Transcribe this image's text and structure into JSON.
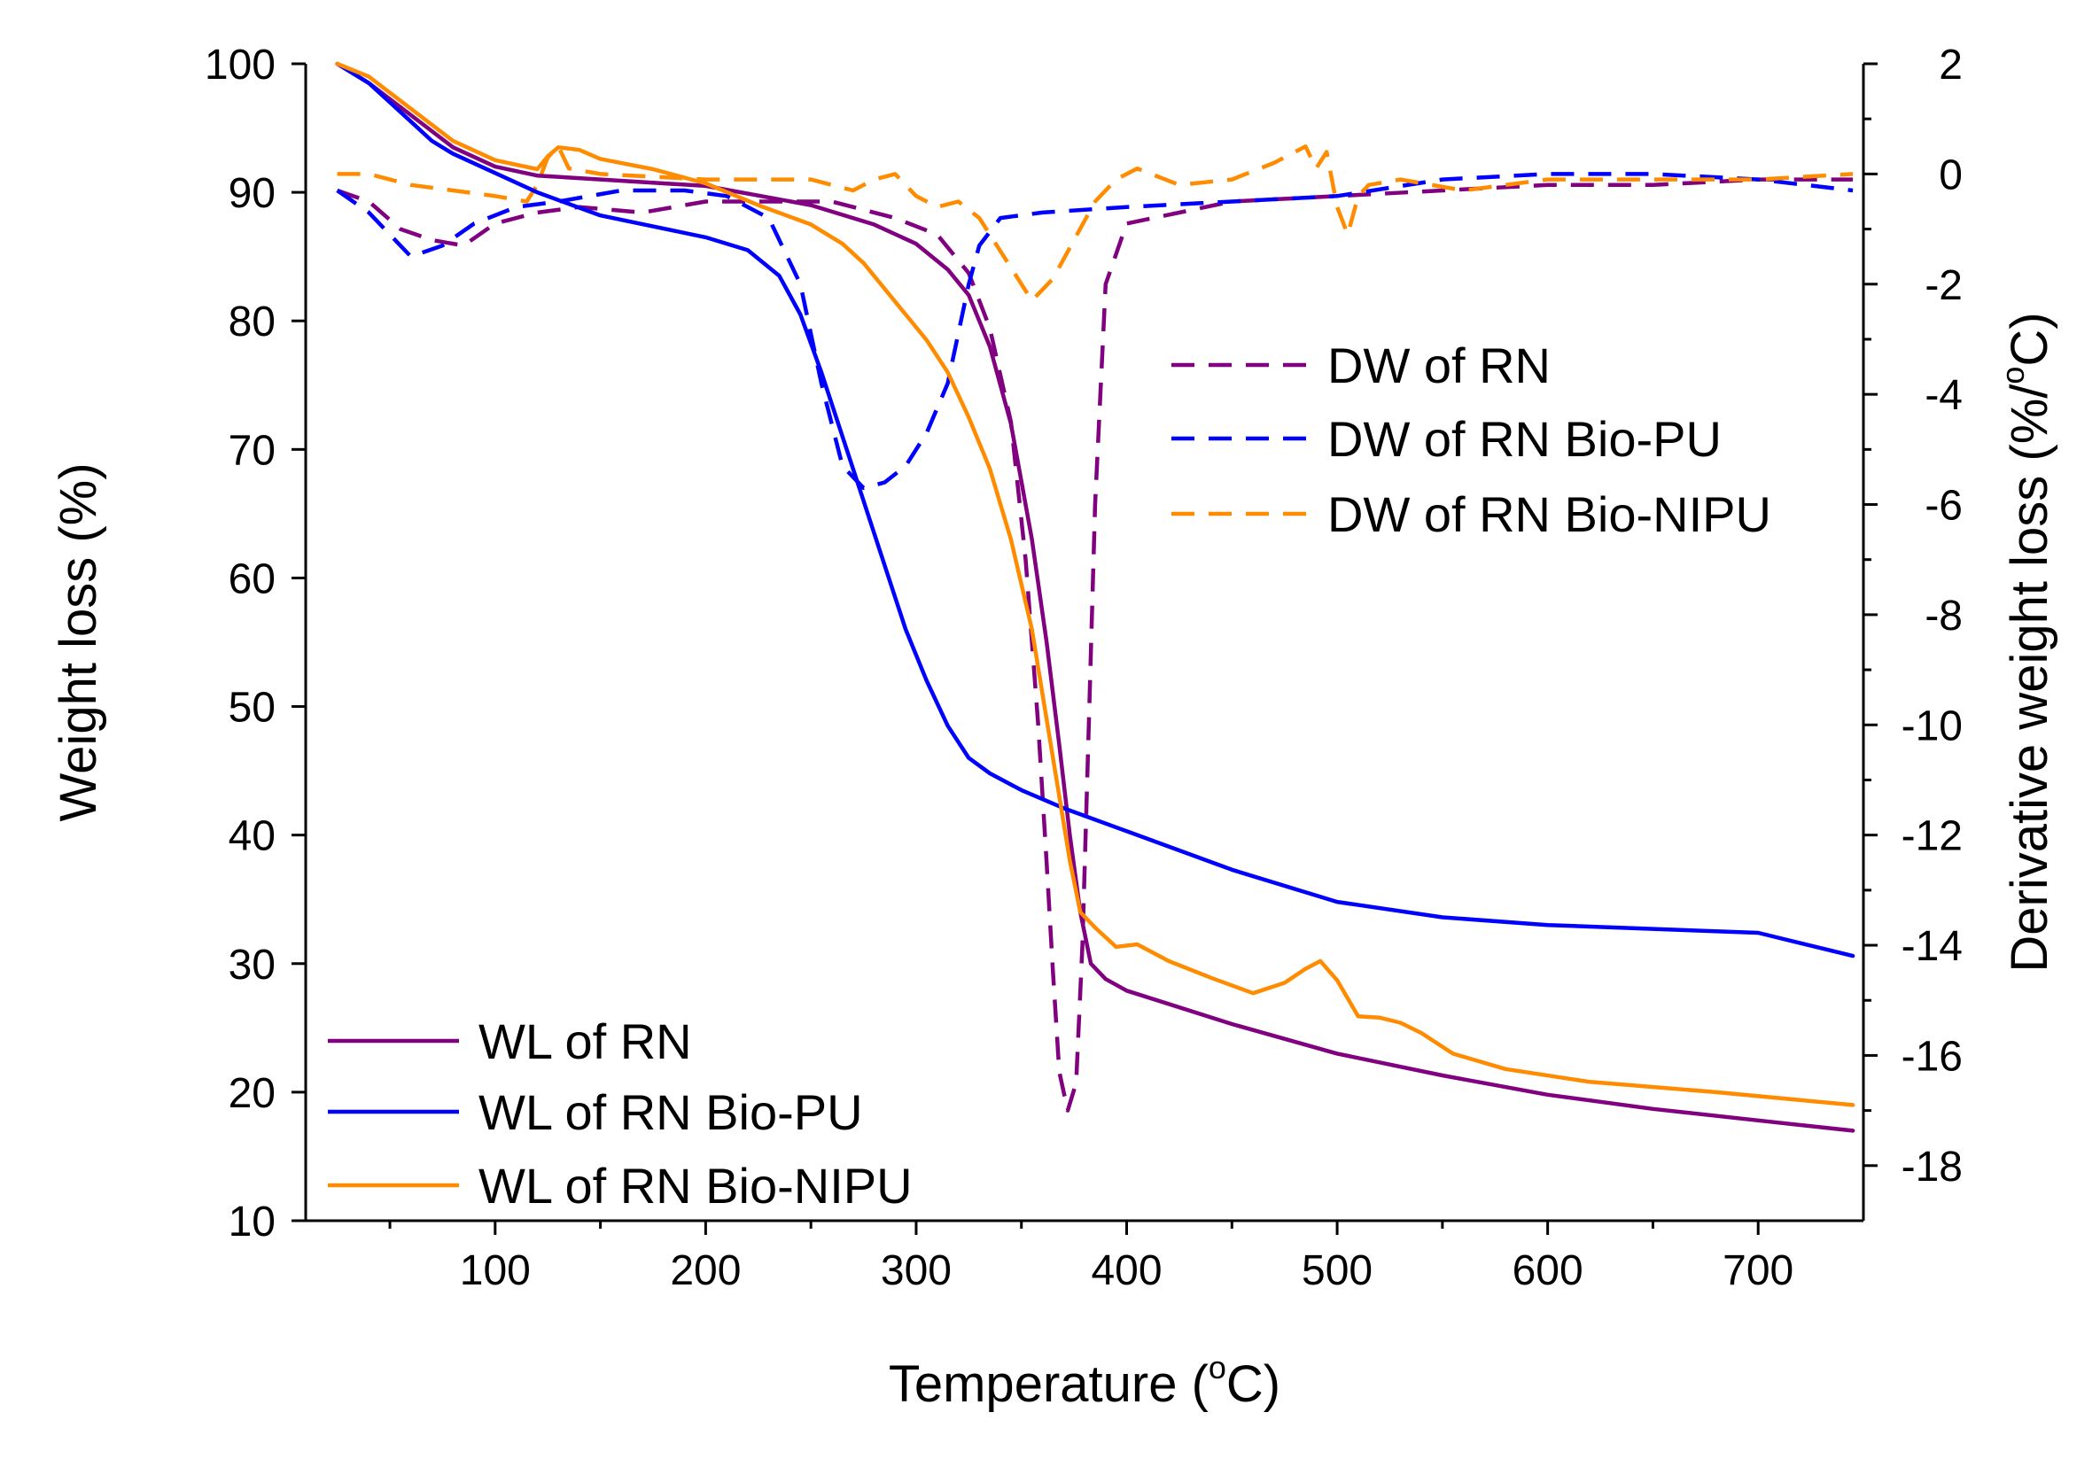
{
  "chart_data": {
    "type": "line",
    "title": "",
    "xlabel_main": "Temperature (",
    "xlabel_sup": "o",
    "xlabel_tail": "C)",
    "ylabel": "Weight loss (%)",
    "y2label_main": "Derivative weight loss (%/",
    "y2label_sup": "o",
    "y2label_tail": "C)",
    "xlim": [
      10,
      750
    ],
    "ylim": [
      10,
      100
    ],
    "y2lim": [
      -19,
      2
    ],
    "x_ticks": [
      100,
      200,
      300,
      400,
      500,
      600,
      700
    ],
    "x_tick_labels": [
      "100",
      "200",
      "300",
      "400",
      "500",
      "600",
      "700"
    ],
    "y_ticks": [
      10,
      20,
      30,
      40,
      50,
      60,
      70,
      80,
      90,
      100
    ],
    "y_tick_labels": [
      "10",
      "20",
      "30",
      "40",
      "50",
      "60",
      "70",
      "80",
      "90",
      "100"
    ],
    "y2_ticks": [
      2,
      0,
      -2,
      -4,
      -6,
      -8,
      -10,
      -12,
      -14,
      -16,
      -18
    ],
    "y2_tick_labels": [
      "2",
      "0",
      "-2",
      "-4",
      "-6",
      "-8",
      "-10",
      "-12",
      "-14",
      "-16",
      "-18"
    ],
    "legend_wl_placement": "bottom-left",
    "legend_dw_placement": "top-right",
    "series": [
      {
        "name": "WL of RN",
        "axis": "left",
        "style": "solid",
        "color": "#800080",
        "x": [
          25,
          40,
          60,
          80,
          100,
          120,
          150,
          200,
          250,
          280,
          300,
          315,
          325,
          335,
          345,
          355,
          362,
          368,
          373,
          378,
          383,
          390,
          400,
          450,
          500,
          550,
          600,
          650,
          700,
          745
        ],
        "y": [
          100,
          98.5,
          96,
          93.5,
          92,
          91.3,
          91,
          90.5,
          89,
          87.5,
          86,
          84,
          82,
          78,
          72,
          63,
          55,
          47,
          40,
          34,
          30,
          28.8,
          27.9,
          25.3,
          23,
          21.3,
          19.8,
          18.7,
          17.8,
          17
        ]
      },
      {
        "name": "WL of RN Bio-PU",
        "axis": "left",
        "style": "solid",
        "color": "#0000FF",
        "x": [
          25,
          40,
          50,
          60,
          70,
          80,
          100,
          120,
          150,
          200,
          220,
          235,
          245,
          255,
          265,
          275,
          285,
          295,
          305,
          315,
          325,
          335,
          350,
          370,
          400,
          450,
          500,
          550,
          600,
          650,
          700,
          745
        ],
        "y": [
          100,
          98.5,
          97,
          95.5,
          94,
          93,
          91.5,
          90,
          88.2,
          86.5,
          85.5,
          83.5,
          80.5,
          76,
          71,
          66,
          61,
          56,
          52,
          48.5,
          46,
          44.8,
          43.5,
          42.1,
          40.3,
          37.3,
          34.8,
          33.6,
          33,
          32.7,
          32.4,
          30.6
        ]
      },
      {
        "name": "WL of RN Bio-NIPU",
        "axis": "left",
        "style": "solid",
        "color": "#FF8C00",
        "x": [
          25,
          40,
          60,
          80,
          100,
          120,
          125,
          130,
          140,
          150,
          175,
          200,
          225,
          250,
          265,
          275,
          285,
          295,
          305,
          315,
          325,
          335,
          345,
          355,
          362,
          368,
          373,
          378,
          385,
          395,
          405,
          420,
          440,
          460,
          475,
          485,
          492,
          500,
          510,
          520,
          530,
          540,
          555,
          580,
          620,
          680,
          745
        ],
        "y": [
          100,
          99,
          96.5,
          94,
          92.5,
          91.8,
          92.8,
          93.5,
          93.3,
          92.6,
          91.8,
          90.7,
          89,
          87.5,
          86,
          84.5,
          82.5,
          80.5,
          78.5,
          76,
          72.5,
          68.5,
          63,
          56,
          49,
          43,
          38,
          34,
          32.8,
          31.3,
          31.5,
          30.2,
          28.9,
          27.7,
          28.5,
          29.6,
          30.2,
          28.7,
          25.9,
          25.8,
          25.4,
          24.6,
          23,
          21.8,
          20.8,
          20,
          19
        ]
      },
      {
        "name": "DW of RN",
        "axis": "right",
        "style": "dashed",
        "color": "#800080",
        "x": [
          25,
          40,
          55,
          70,
          85,
          100,
          120,
          140,
          170,
          200,
          230,
          260,
          290,
          310,
          325,
          335,
          345,
          352,
          358,
          362,
          365,
          368,
          372,
          376,
          379,
          382,
          385,
          390,
          400,
          450,
          500,
          550,
          600,
          650,
          700,
          745
        ],
        "y": [
          -0.3,
          -0.5,
          -1,
          -1.2,
          -1.3,
          -0.9,
          -0.7,
          -0.6,
          -0.7,
          -0.5,
          -0.5,
          -0.5,
          -0.8,
          -1.1,
          -1.8,
          -2.8,
          -4.5,
          -7,
          -10,
          -12.5,
          -14.5,
          -16.3,
          -17,
          -16.5,
          -14,
          -10,
          -6,
          -2,
          -0.9,
          -0.5,
          -0.4,
          -0.3,
          -0.2,
          -0.2,
          -0.1,
          -0.1
        ]
      },
      {
        "name": "DW of RN Bio-PU",
        "axis": "right",
        "style": "dashed",
        "color": "#0000FF",
        "x": [
          25,
          40,
          50,
          60,
          75,
          90,
          110,
          130,
          160,
          190,
          210,
          230,
          245,
          255,
          265,
          275,
          285,
          295,
          305,
          315,
          325,
          330,
          340,
          360,
          400,
          450,
          500,
          550,
          600,
          650,
          700,
          745
        ],
        "y": [
          -0.3,
          -0.7,
          -1.1,
          -1.5,
          -1.3,
          -0.9,
          -0.6,
          -0.5,
          -0.3,
          -0.3,
          -0.4,
          -0.8,
          -2,
          -3.8,
          -5.3,
          -5.7,
          -5.6,
          -5.3,
          -4.7,
          -3.8,
          -2,
          -1.3,
          -0.8,
          -0.7,
          -0.6,
          -0.5,
          -0.4,
          -0.1,
          0,
          0,
          -0.1,
          -0.3
        ]
      },
      {
        "name": "DW of RN Bio-NIPU",
        "axis": "right",
        "style": "dashed",
        "color": "#FF8C00",
        "x": [
          25,
          40,
          60,
          80,
          100,
          115,
          120,
          125,
          130,
          135,
          150,
          200,
          250,
          270,
          280,
          290,
          300,
          310,
          320,
          330,
          340,
          355,
          365,
          375,
          385,
          395,
          405,
          425,
          450,
          470,
          485,
          490,
          495,
          500,
          505,
          510,
          515,
          530,
          560,
          600,
          650,
          700,
          745
        ],
        "y": [
          0,
          0,
          -0.2,
          -0.3,
          -0.4,
          -0.5,
          -0.2,
          0.3,
          0.5,
          0.1,
          0,
          -0.1,
          -0.1,
          -0.3,
          -0.1,
          0,
          -0.4,
          -0.6,
          -0.5,
          -0.8,
          -1.4,
          -2.3,
          -1.9,
          -1.2,
          -0.5,
          -0.1,
          0.1,
          -0.2,
          -0.1,
          0.2,
          0.5,
          0.1,
          0.4,
          -0.6,
          -1.1,
          -0.4,
          -0.2,
          -0.1,
          -0.3,
          -0.1,
          -0.1,
          -0.1,
          0
        ]
      }
    ]
  }
}
